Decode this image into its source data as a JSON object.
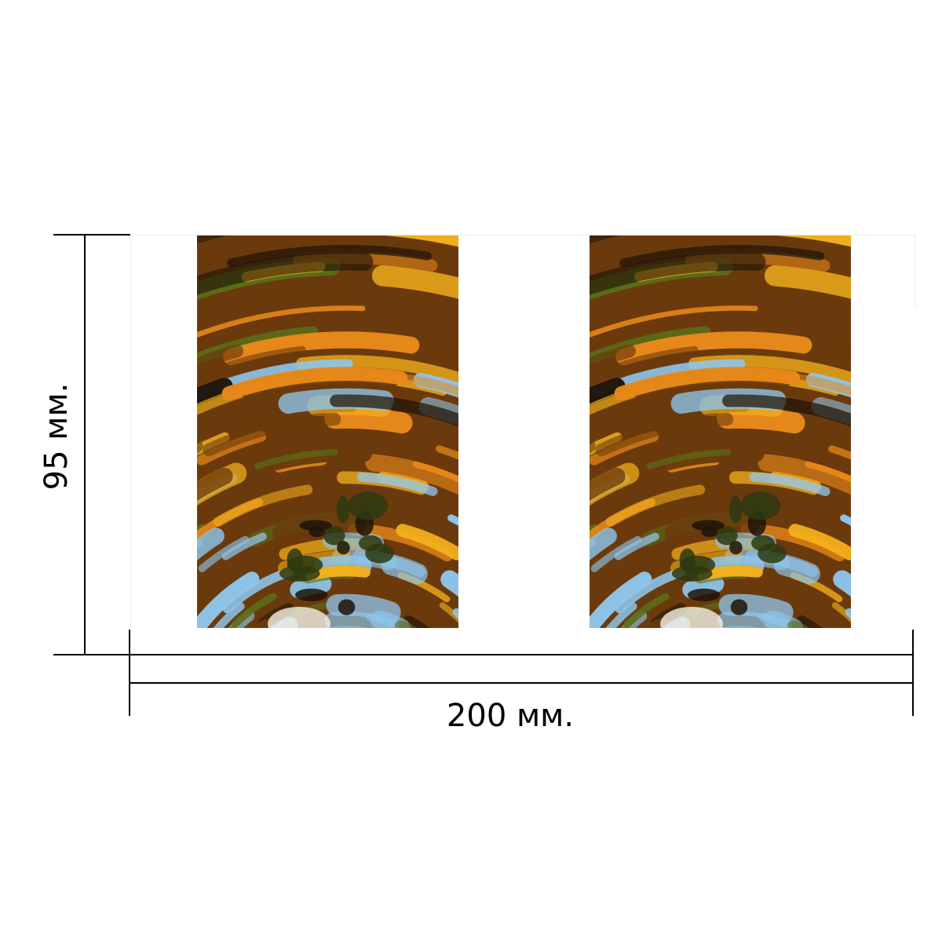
{
  "dimensions": {
    "width_label": "200 мм.",
    "height_label": "95 мм."
  },
  "panels": [
    {
      "image": "swirl-abstract-autumn-photo"
    },
    {
      "image": "swirl-abstract-autumn-photo"
    }
  ],
  "colors": {
    "orange": "#e8891a",
    "amber": "#f3b01c",
    "brown": "#6b3a0c",
    "dark": "#1e1408",
    "sky": "#8ec5ea",
    "green": "#5a6d18"
  }
}
